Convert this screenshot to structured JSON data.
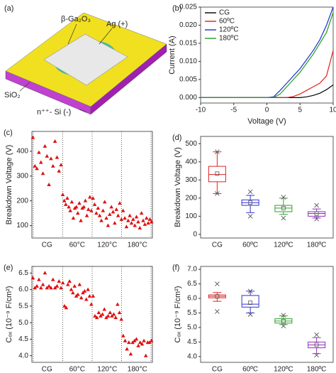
{
  "diagram": {
    "panel_label": "(a)",
    "labels": [
      "β-Ga₂O₃",
      "Ag (+)",
      "SiO₂",
      "n⁺⁺- Si (-)"
    ]
  },
  "chart_data": [
    {
      "type": "line",
      "panel_label": "(b)",
      "x_label": "Voltage (V)",
      "y_label": "Current (A)",
      "xlim": [
        -10,
        10
      ],
      "xticks": [
        -10,
        -5,
        0,
        5,
        10
      ],
      "ylim": [
        -0.0015,
        0.025
      ],
      "yticks": [
        {
          "value": 0,
          "label": "0.000"
        },
        {
          "value": 0.005,
          "label": "0.005"
        },
        {
          "value": 0.01,
          "label": "0.010"
        },
        {
          "value": 0.015,
          "label": "0.015"
        },
        {
          "value": 0.02,
          "label": "0.020"
        },
        {
          "value": 0.025,
          "label": "0.025"
        }
      ],
      "legend": "upper-left",
      "x": [
        -10,
        -9,
        -8,
        -7,
        -6,
        -5,
        -4,
        -3,
        -2,
        -1,
        0,
        1,
        2,
        3,
        4,
        5,
        6,
        7,
        8,
        9,
        10
      ],
      "series": [
        {
          "name": "CG",
          "color": "#000000",
          "values": [
            0,
            0,
            0,
            0,
            0,
            0,
            0,
            0,
            0,
            0,
            0,
            0,
            0,
            0,
            0,
            0,
            0.0002,
            0.0006,
            0.0012,
            0.0022,
            0.0035
          ]
        },
        {
          "name": "60ºC",
          "color": "#e02020",
          "values": [
            0,
            0,
            0,
            0,
            0,
            0,
            0,
            0,
            0,
            0,
            0,
            0,
            0,
            0,
            0.0003,
            0.001,
            0.002,
            0.003,
            0.004,
            0.006,
            0.013
          ]
        },
        {
          "name": "120ºC",
          "color": "#2030d0",
          "values": [
            0,
            0,
            0,
            0,
            0,
            0,
            0,
            0,
            0,
            0,
            0,
            0.0002,
            0.002,
            0.004,
            0.006,
            0.008,
            0.0105,
            0.013,
            0.016,
            0.02,
            0.025
          ]
        },
        {
          "name": "180ºC",
          "color": "#20a020",
          "values": [
            0,
            0,
            0,
            0,
            0,
            0,
            0,
            0,
            0,
            0,
            0,
            0,
            0.001,
            0.003,
            0.005,
            0.007,
            0.0095,
            0.012,
            0.015,
            0.018,
            0.0235
          ]
        }
      ]
    },
    {
      "type": "scatter",
      "panel_label": "(c)",
      "y_label": "Breakdown Voltage (V)",
      "color": "#e01010",
      "categories": [
        "CG",
        "60°C",
        "120°C",
        "180°C"
      ],
      "ylim": [
        50,
        480
      ],
      "yticks": [
        100,
        200,
        300,
        400
      ],
      "values": [
        [
          455,
          340,
          330,
          395,
          355,
          310,
          420,
          380,
          265,
          370,
          340,
          440,
          375,
          320,
          345
        ],
        [
          225,
          200,
          185,
          210,
          175,
          160,
          195,
          130,
          170,
          175,
          150,
          190,
          120,
          170,
          175,
          200,
          140,
          165,
          215,
          160
        ],
        [
          210,
          185,
          150,
          170,
          140,
          120,
          160,
          195,
          130,
          100,
          145,
          175,
          155,
          110,
          165,
          140,
          190,
          125
        ],
        [
          160,
          130,
          95,
          120,
          140,
          110,
          125,
          100,
          135,
          115,
          90,
          150,
          120,
          105,
          130,
          110,
          125,
          115
        ]
      ]
    },
    {
      "type": "box",
      "panel_label": "(d)",
      "y_label": "Breakdown Voltage (V)",
      "categories": [
        "CG",
        "60ºC",
        "120ºC",
        "180ºC"
      ],
      "ylim": [
        -20,
        540
      ],
      "yticks": [
        0,
        100,
        200,
        300,
        400,
        500
      ],
      "boxes": [
        {
          "color": "#e02020",
          "whisker_low": 225,
          "q1": 290,
          "median": 330,
          "q3": 375,
          "whisker_high": 455,
          "mean": 335,
          "min": 225,
          "max": 455
        },
        {
          "color": "#3030d0",
          "whisker_low": 120,
          "q1": 160,
          "median": 175,
          "q3": 190,
          "whisker_high": 215,
          "mean": 175,
          "min": 100,
          "max": 235
        },
        {
          "color": "#30a030",
          "whisker_low": 110,
          "q1": 125,
          "median": 145,
          "q3": 160,
          "whisker_high": 200,
          "mean": 145,
          "min": 90,
          "max": 205
        },
        {
          "color": "#9030c0",
          "whisker_low": 90,
          "q1": 100,
          "median": 115,
          "q3": 125,
          "whisker_high": 140,
          "mean": 115,
          "min": 85,
          "max": 160
        }
      ]
    },
    {
      "type": "scatter",
      "panel_label": "(e)",
      "y_label": "Cₒₓ (10⁻⁹ F/cm²)",
      "color": "#e01010",
      "categories": [
        "CG",
        "60°C",
        "120°C",
        "180°C"
      ],
      "ylim": [
        3.8,
        6.7
      ],
      "yticks": [
        {
          "value": 4,
          "label": "4.0"
        },
        4.5,
        {
          "value": 5,
          "label": "5.0"
        },
        5.5,
        {
          "value": 6,
          "label": "6.0"
        },
        6.5
      ],
      "values": [
        [
          6.35,
          6.05,
          6.1,
          6.3,
          6.05,
          6.15,
          6.5,
          6.05,
          6.1,
          6.05,
          6.3,
          6.05,
          6.1,
          6.25,
          6.05
        ],
        [
          6.2,
          5.5,
          5.45,
          6.15,
          6.25,
          6.0,
          5.9,
          6.1,
          5.8,
          5.85,
          6.15,
          5.75,
          5.9,
          5.95,
          5.7,
          6.0,
          5.8,
          5.55
        ],
        [
          5.8,
          5.2,
          5.15,
          5.3,
          5.2,
          5.25,
          5.4,
          5.15,
          5.2,
          5.3,
          5.2,
          5.25,
          5.15,
          5.55,
          5.3,
          5.1
        ],
        [
          4.6,
          4.45,
          4.2,
          4.4,
          4.05,
          4.4,
          4.45,
          4.5,
          4.3,
          4.4,
          4.35,
          4.45,
          4.0,
          4.4,
          4.4,
          4.45
        ]
      ]
    },
    {
      "type": "box",
      "panel_label": "(f)",
      "y_label": "Cₒₓ (10⁻⁹ F/cm²)",
      "categories": [
        "CG",
        "60ºC",
        "120ºC",
        "180ºC"
      ],
      "ylim": [
        3.8,
        7.1
      ],
      "yticks": [
        {
          "value": 4,
          "label": "4.0"
        },
        4.5,
        {
          "value": 5,
          "label": "5.0"
        },
        5.5,
        {
          "value": 6,
          "label": "6.0"
        },
        6.5,
        {
          "value": 7,
          "label": "7.0"
        }
      ],
      "boxes": [
        {
          "color": "#e02020",
          "whisker_low": 5.9,
          "q1": 6.02,
          "median": 6.07,
          "q3": 6.12,
          "whisker_high": 6.2,
          "mean": 6.07,
          "min": 5.55,
          "max": 6.5
        },
        {
          "color": "#3030d0",
          "whisker_low": 5.5,
          "q1": 5.7,
          "median": 5.8,
          "q3": 6.1,
          "whisker_high": 6.25,
          "mean": 5.85,
          "min": 5.45,
          "max": 6.25
        },
        {
          "color": "#30a030",
          "whisker_low": 5.1,
          "q1": 5.15,
          "median": 5.22,
          "q3": 5.3,
          "whisker_high": 5.4,
          "mean": 5.22,
          "min": 5.05,
          "max": 5.42
        },
        {
          "color": "#9030c0",
          "whisker_low": 4.1,
          "q1": 4.3,
          "median": 4.4,
          "q3": 4.5,
          "whisker_high": 4.65,
          "mean": 4.4,
          "min": 4.05,
          "max": 4.75
        }
      ]
    }
  ]
}
